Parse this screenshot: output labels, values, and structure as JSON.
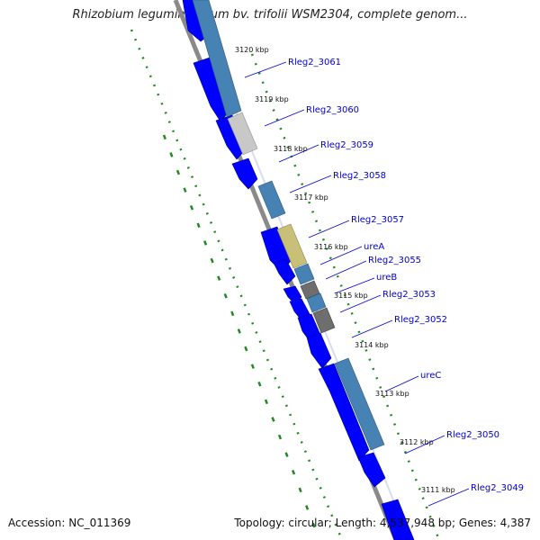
{
  "title": "Rhizobium leguminosarum bv. trifolii WSM2304, complete genom...",
  "footer": {
    "accession": "Accession: NC_011369",
    "summary": "Topology: circular; Length: 4,537,948 bp; Genes: 4,387"
  },
  "colors": {
    "cds_forward": "#0000ff",
    "cds_steelblue": "#4682b4",
    "cds_gray": "#c8c8c8",
    "cds_darkgray": "#6e6e6e",
    "cds_khaki": "#c8c078",
    "backbone": "#8a8a8a",
    "dotted_track": "#1f8a1f",
    "label": "#0000cc"
  },
  "kbp_ticks": [
    "3120 kbp",
    "3119 kbp",
    "3118 kbp",
    "3117 kbp",
    "3116 kbp",
    "3115 kbp",
    "3114 kbp",
    "3113 kbp",
    "3112 kbp",
    "3111 kbp"
  ],
  "gene_labels": [
    "Rleg2_3061",
    "Rleg2_3060",
    "Rleg2_3059",
    "Rleg2_3058",
    "Rleg2_3057",
    "ureA",
    "Rleg2_3055",
    "ureB",
    "Rleg2_3053",
    "Rleg2_3052",
    "ureC",
    "Rleg2_3050",
    "Rleg2_3049"
  ]
}
